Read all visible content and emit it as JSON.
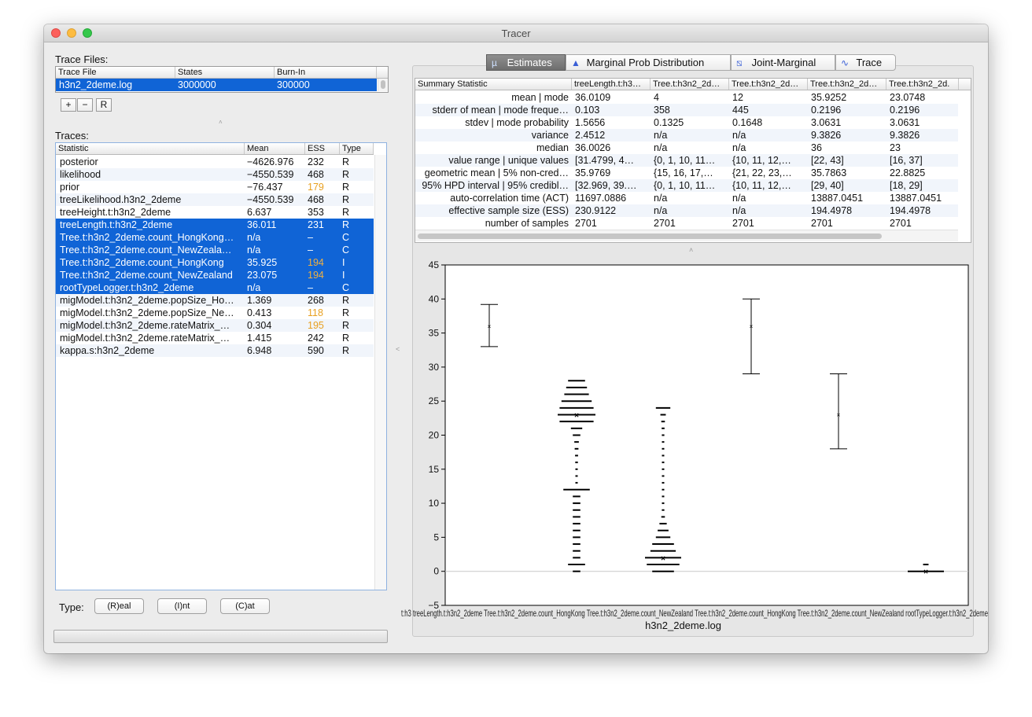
{
  "window": {
    "title": "Tracer"
  },
  "trace_files": {
    "label": "Trace Files:",
    "headers": [
      "Trace File",
      "States",
      "Burn-In"
    ],
    "rows": [
      {
        "file": "h3n2_2deme.log",
        "states": "3000000",
        "burnin": "300000"
      }
    ],
    "buttons": {
      "add": "+",
      "remove": "−",
      "reload": "R"
    }
  },
  "traces": {
    "label": "Traces:",
    "headers": [
      "Statistic",
      "Mean",
      "ESS",
      "Type"
    ],
    "rows": [
      {
        "stat": "posterior",
        "mean": "−4626.976",
        "ess": "232",
        "type": "R",
        "selected": false,
        "ess_low": false
      },
      {
        "stat": "likelihood",
        "mean": "−4550.539",
        "ess": "468",
        "type": "R",
        "selected": false,
        "ess_low": false
      },
      {
        "stat": "prior",
        "mean": "−76.437",
        "ess": "179",
        "type": "R",
        "selected": false,
        "ess_low": true
      },
      {
        "stat": "treeLikelihood.h3n2_2deme",
        "mean": "−4550.539",
        "ess": "468",
        "type": "R",
        "selected": false,
        "ess_low": false
      },
      {
        "stat": "treeHeight.t:h3n2_2deme",
        "mean": "6.637",
        "ess": "353",
        "type": "R",
        "selected": false,
        "ess_low": false
      },
      {
        "stat": "treeLength.t:h3n2_2deme",
        "mean": "36.011",
        "ess": "231",
        "type": "R",
        "selected": true,
        "ess_low": false
      },
      {
        "stat": "Tree.t:h3n2_2deme.count_HongKong…",
        "mean": "n/a",
        "ess": "–",
        "type": "C",
        "selected": true,
        "ess_low": false
      },
      {
        "stat": "Tree.t:h3n2_2deme.count_NewZeala…",
        "mean": "n/a",
        "ess": "–",
        "type": "C",
        "selected": true,
        "ess_low": false
      },
      {
        "stat": "Tree.t:h3n2_2deme.count_HongKong",
        "mean": "35.925",
        "ess": "194",
        "type": "I",
        "selected": true,
        "ess_low": true
      },
      {
        "stat": "Tree.t:h3n2_2deme.count_NewZealand",
        "mean": "23.075",
        "ess": "194",
        "type": "I",
        "selected": true,
        "ess_low": true
      },
      {
        "stat": "rootTypeLogger.t:h3n2_2deme",
        "mean": "n/a",
        "ess": "–",
        "type": "C",
        "selected": true,
        "ess_low": false
      },
      {
        "stat": "migModel.t:h3n2_2deme.popSize_Ho…",
        "mean": "1.369",
        "ess": "268",
        "type": "R",
        "selected": false,
        "ess_low": false
      },
      {
        "stat": "migModel.t:h3n2_2deme.popSize_Ne…",
        "mean": "0.413",
        "ess": "118",
        "type": "R",
        "selected": false,
        "ess_low": true
      },
      {
        "stat": "migModel.t:h3n2_2deme.rateMatrix_…",
        "mean": "0.304",
        "ess": "195",
        "type": "R",
        "selected": false,
        "ess_low": true
      },
      {
        "stat": "migModel.t:h3n2_2deme.rateMatrix_…",
        "mean": "1.415",
        "ess": "242",
        "type": "R",
        "selected": false,
        "ess_low": false
      },
      {
        "stat": "kappa.s:h3n2_2deme",
        "mean": "6.948",
        "ess": "590",
        "type": "R",
        "selected": false,
        "ess_low": false
      }
    ]
  },
  "type_buttons": {
    "label": "Type:",
    "real": "(R)eal",
    "int": "(I)nt",
    "cat": "(C)at"
  },
  "tabs": [
    {
      "label": "Estimates",
      "icon": "mu-icon",
      "active": true
    },
    {
      "label": "Marginal Prob Distribution",
      "icon": "density-icon",
      "active": false
    },
    {
      "label": "Joint-Marginal",
      "icon": "joint-icon",
      "active": false
    },
    {
      "label": "Trace",
      "icon": "trace-icon",
      "active": false
    }
  ],
  "summary": {
    "headers": [
      "Summary Statistic",
      "treeLength.t:h3…",
      "Tree.t:h3n2_2d…",
      "Tree.t:h3n2_2d…",
      "Tree.t:h3n2_2d…",
      "Tree.t:h3n2_2d."
    ],
    "rows": [
      [
        "mean | mode",
        "36.0109",
        "4",
        "12",
        "35.9252",
        "23.0748"
      ],
      [
        "stderr of mean | mode freque…",
        "0.103",
        "358",
        "445",
        "0.2196",
        "0.2196"
      ],
      [
        "stdev | mode probability",
        "1.5656",
        "0.1325",
        "0.1648",
        "3.0631",
        "3.0631"
      ],
      [
        "variance",
        "2.4512",
        "n/a",
        "n/a",
        "9.3826",
        "9.3826"
      ],
      [
        "median",
        "36.0026",
        "n/a",
        "n/a",
        "36",
        "23"
      ],
      [
        "value range | unique values",
        "[31.4799, 4…",
        "{0, 1, 10, 11…",
        "{10, 11, 12,…",
        "[22, 43]",
        "[16, 37]"
      ],
      [
        "geometric mean | 5% non-cred…",
        "35.9769",
        "{15, 16, 17,…",
        "{21, 22, 23,…",
        "35.7863",
        "22.8825"
      ],
      [
        "95% HPD interval | 95% credibl…",
        "[32.969, 39.…",
        "{0, 1, 10, 11…",
        "{10, 11, 12,…",
        "[29, 40]",
        "[18, 29]"
      ],
      [
        "auto-correlation time (ACT)",
        "11697.0886",
        "n/a",
        "n/a",
        "13887.0451",
        "13887.0451"
      ],
      [
        "effective sample size (ESS)",
        "230.9122",
        "n/a",
        "n/a",
        "194.4978",
        "194.4978"
      ],
      [
        "number of samples",
        "2701",
        "2701",
        "2701",
        "2701",
        "2701"
      ]
    ]
  },
  "chart_data": {
    "type": "error-bar",
    "xlabel": "h3n2_2deme.log",
    "ylim": [
      -5,
      45
    ],
    "yticks": [
      "−5",
      "0",
      "5",
      "10",
      "15",
      "20",
      "25",
      "30",
      "35",
      "40",
      "45"
    ],
    "xtick_text": "t:h3 treeLength.t:h3n2_2deme Tree.t:h3n2_2deme.count_HongKong Tree.t:h3n2_2deme.count_NewZealand Tree.t:h3n2_2deme.count_HongKong Tree.t:h3n2_2deme.count_NewZealand rootTypeLogger.t:h3n2_2deme",
    "intervals": [
      {
        "mean": 36.0,
        "low": 33.0,
        "high": 39.2
      },
      {
        "mean": 36.0,
        "low": 29.0,
        "high": 40.0
      },
      {
        "mean": 23.0,
        "low": 18.0,
        "high": 29.0
      }
    ],
    "categorical": [
      {
        "mean": 23,
        "bars": [
          {
            "y": 28,
            "w": 0.45
          },
          {
            "y": 27,
            "w": 0.55
          },
          {
            "y": 26,
            "w": 0.65
          },
          {
            "y": 25,
            "w": 0.8
          },
          {
            "y": 24,
            "w": 0.9
          },
          {
            "y": 23,
            "w": 1.0
          },
          {
            "y": 22,
            "w": 0.9
          },
          {
            "y": 21,
            "w": 0.3
          },
          {
            "y": 20,
            "w": 0.2
          },
          {
            "y": 19,
            "w": 0.12
          },
          {
            "y": 18,
            "w": 0.1
          },
          {
            "y": 17,
            "w": 0.08
          },
          {
            "y": 16,
            "w": 0.07
          },
          {
            "y": 15,
            "w": 0.06
          },
          {
            "y": 14,
            "w": 0.05
          },
          {
            "y": 13,
            "w": 0.05
          },
          {
            "y": 12,
            "w": 0.7
          },
          {
            "y": 11,
            "w": 0.2
          },
          {
            "y": 10,
            "w": 0.2
          },
          {
            "y": 9,
            "w": 0.2
          },
          {
            "y": 8,
            "w": 0.2
          },
          {
            "y": 7,
            "w": 0.2
          },
          {
            "y": 6,
            "w": 0.2
          },
          {
            "y": 5,
            "w": 0.2
          },
          {
            "y": 4,
            "w": 0.2
          },
          {
            "y": 3,
            "w": 0.2
          },
          {
            "y": 2,
            "w": 0.2
          },
          {
            "y": 1,
            "w": 0.45
          },
          {
            "y": 0,
            "w": 0.2
          }
        ]
      },
      {
        "mean": 2,
        "bars": [
          {
            "y": 24,
            "w": 0.4
          },
          {
            "y": 23,
            "w": 0.15
          },
          {
            "y": 22,
            "w": 0.1
          },
          {
            "y": 21,
            "w": 0.08
          },
          {
            "y": 20,
            "w": 0.07
          },
          {
            "y": 19,
            "w": 0.06
          },
          {
            "y": 18,
            "w": 0.06
          },
          {
            "y": 17,
            "w": 0.05
          },
          {
            "y": 16,
            "w": 0.05
          },
          {
            "y": 15,
            "w": 0.05
          },
          {
            "y": 14,
            "w": 0.05
          },
          {
            "y": 13,
            "w": 0.05
          },
          {
            "y": 12,
            "w": 0.05
          },
          {
            "y": 11,
            "w": 0.05
          },
          {
            "y": 10,
            "w": 0.06
          },
          {
            "y": 9,
            "w": 0.07
          },
          {
            "y": 8,
            "w": 0.1
          },
          {
            "y": 7,
            "w": 0.2
          },
          {
            "y": 6,
            "w": 0.3
          },
          {
            "y": 5,
            "w": 0.4
          },
          {
            "y": 4,
            "w": 0.6
          },
          {
            "y": 3,
            "w": 0.7
          },
          {
            "y": 2,
            "w": 1.0
          },
          {
            "y": 1,
            "w": 0.9
          },
          {
            "y": 0,
            "w": 0.6
          }
        ]
      },
      {
        "mean": 0,
        "bars": [
          {
            "y": 1,
            "w": 0.15
          },
          {
            "y": 0,
            "w": 1.0
          }
        ]
      }
    ]
  }
}
